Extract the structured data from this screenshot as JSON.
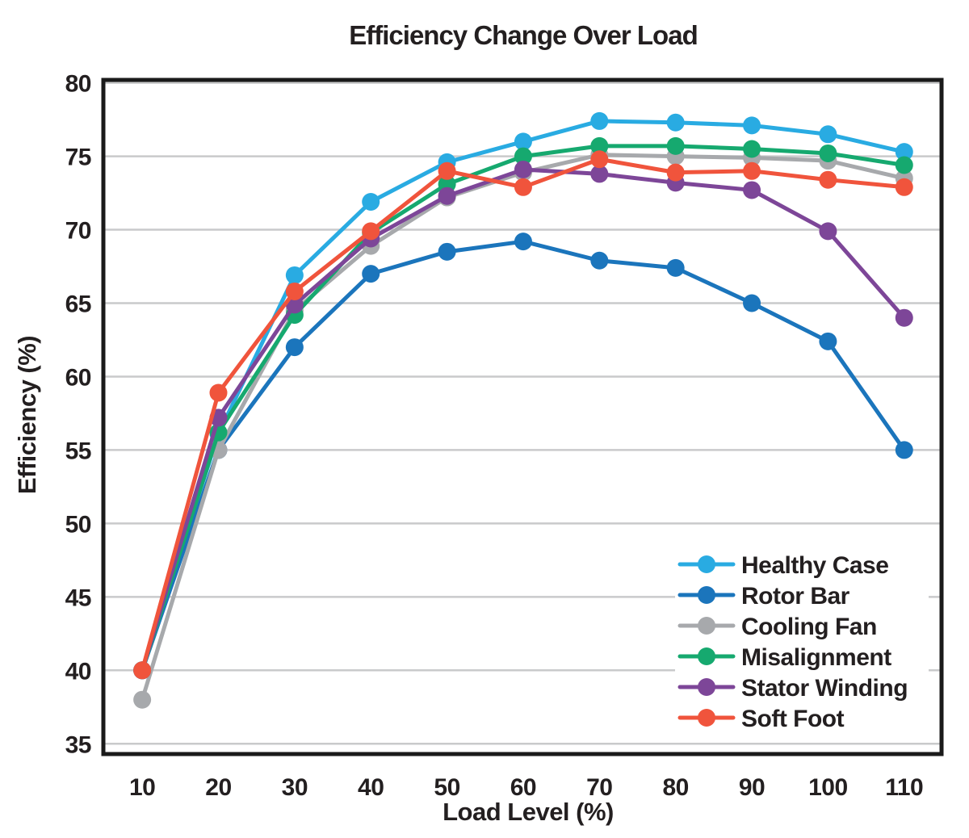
{
  "title": "Efficiency Change Over Load",
  "chart_data": {
    "type": "line",
    "title": "Efficiency Change Over Load",
    "xlabel": "Load Level (%)",
    "ylabel": "Efficiency (%)",
    "x": [
      10,
      20,
      30,
      40,
      50,
      60,
      70,
      80,
      90,
      100,
      110
    ],
    "x_tick_labels": [
      "10",
      "20",
      "30",
      "40",
      "50",
      "60",
      "70",
      "80",
      "90",
      "100",
      "110"
    ],
    "y_ticks": [
      35,
      40,
      45,
      50,
      55,
      60,
      65,
      70,
      75,
      80
    ],
    "xlim": [
      4.9,
      114.9
    ],
    "ylim": [
      34.3,
      80.2
    ],
    "grid": "horizontal-only",
    "legend_position": "lower-right-inside",
    "series": [
      {
        "name": "Healthy Case",
        "color": "#29ABE2",
        "values": [
          40.0,
          56.1,
          66.9,
          71.9,
          74.6,
          76.0,
          77.4,
          77.3,
          77.1,
          76.5,
          75.3
        ]
      },
      {
        "name": "Rotor Bar",
        "color": "#1B75BC",
        "values": [
          40.0,
          55.0,
          62.0,
          67.0,
          68.5,
          69.2,
          67.9,
          67.4,
          65.0,
          62.4,
          55.0
        ]
      },
      {
        "name": "Cooling Fan",
        "color": "#A7A9AC",
        "values": [
          38.0,
          55.0,
          64.5,
          68.9,
          72.2,
          73.9,
          75.1,
          75.0,
          74.9,
          74.7,
          73.5
        ]
      },
      {
        "name": "Misalignment",
        "color": "#16A96F",
        "values": [
          40.0,
          56.2,
          64.2,
          69.8,
          73.1,
          75.0,
          75.7,
          75.7,
          75.5,
          75.2,
          74.4
        ]
      },
      {
        "name": "Stator Winding",
        "color": "#7D4698",
        "values": [
          40.0,
          57.2,
          64.9,
          69.4,
          72.3,
          74.1,
          73.8,
          73.2,
          72.7,
          69.9,
          64.0
        ]
      },
      {
        "name": "Soft Foot",
        "color": "#F0543C",
        "values": [
          40.0,
          58.9,
          65.8,
          69.9,
          74.0,
          72.9,
          74.8,
          73.9,
          74.0,
          73.4,
          72.9
        ]
      }
    ]
  },
  "colors": {
    "background": "#FFFFFF",
    "text": "#231F20",
    "grid": "#C9CACB",
    "axis_frame": "#1A1A1A",
    "legend_background": "#FFFFFF"
  }
}
